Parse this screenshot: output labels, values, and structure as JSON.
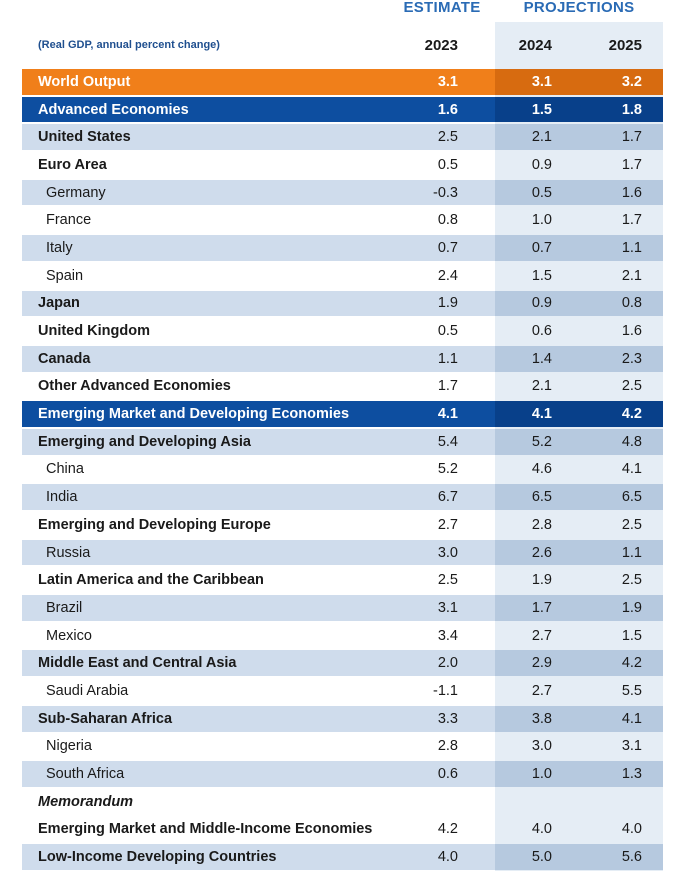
{
  "header": {
    "estimate_label": "ESTIMATE",
    "projections_label": "PROJECTIONS",
    "subtitle": "(Real GDP, annual percent change)",
    "years": [
      "2023",
      "2024",
      "2025"
    ]
  },
  "colors": {
    "orange": "#f07f1a",
    "dark_blue": "#0d4ea0",
    "light_blue_row": "#cfdcec",
    "projection_band": "#e5edf5",
    "header_blue": "#2a6bb5"
  },
  "chart_data": {
    "type": "table",
    "columns": [
      "2023",
      "2024",
      "2025"
    ],
    "rows": [
      {
        "label": "World Output",
        "style": "world",
        "values": [
          "3.1",
          "3.1",
          "3.2"
        ]
      },
      {
        "label": "Advanced Economies",
        "style": "group",
        "values": [
          "1.6",
          "1.5",
          "1.8"
        ]
      },
      {
        "label": "United States",
        "style": "region",
        "values": [
          "2.5",
          "2.1",
          "1.7"
        ]
      },
      {
        "label": "Euro Area",
        "style": "region",
        "values": [
          "0.5",
          "0.9",
          "1.7"
        ]
      },
      {
        "label": "Germany",
        "style": "country",
        "values": [
          "-0.3",
          "0.5",
          "1.6"
        ]
      },
      {
        "label": "France",
        "style": "country",
        "values": [
          "0.8",
          "1.0",
          "1.7"
        ]
      },
      {
        "label": "Italy",
        "style": "country",
        "values": [
          "0.7",
          "0.7",
          "1.1"
        ]
      },
      {
        "label": "Spain",
        "style": "country",
        "values": [
          "2.4",
          "1.5",
          "2.1"
        ]
      },
      {
        "label": "Japan",
        "style": "region",
        "values": [
          "1.9",
          "0.9",
          "0.8"
        ]
      },
      {
        "label": "United Kingdom",
        "style": "region",
        "values": [
          "0.5",
          "0.6",
          "1.6"
        ]
      },
      {
        "label": "Canada",
        "style": "region",
        "values": [
          "1.1",
          "1.4",
          "2.3"
        ]
      },
      {
        "label": "Other Advanced Economies",
        "style": "region",
        "values": [
          "1.7",
          "2.1",
          "2.5"
        ]
      },
      {
        "label": "Emerging Market and Developing Economies",
        "style": "group",
        "values": [
          "4.1",
          "4.1",
          "4.2"
        ]
      },
      {
        "label": "Emerging and Developing Asia",
        "style": "region",
        "values": [
          "5.4",
          "5.2",
          "4.8"
        ]
      },
      {
        "label": "China",
        "style": "country",
        "values": [
          "5.2",
          "4.6",
          "4.1"
        ]
      },
      {
        "label": "India",
        "style": "country",
        "values": [
          "6.7",
          "6.5",
          "6.5"
        ]
      },
      {
        "label": "Emerging and Developing Europe",
        "style": "region",
        "values": [
          "2.7",
          "2.8",
          "2.5"
        ]
      },
      {
        "label": "Russia",
        "style": "country",
        "values": [
          "3.0",
          "2.6",
          "1.1"
        ]
      },
      {
        "label": "Latin America and the Caribbean",
        "style": "region",
        "values": [
          "2.5",
          "1.9",
          "2.5"
        ]
      },
      {
        "label": "Brazil",
        "style": "country",
        "values": [
          "3.1",
          "1.7",
          "1.9"
        ]
      },
      {
        "label": "Mexico",
        "style": "country",
        "values": [
          "3.4",
          "2.7",
          "1.5"
        ]
      },
      {
        "label": "Middle East and Central Asia",
        "style": "region",
        "values": [
          "2.0",
          "2.9",
          "4.2"
        ]
      },
      {
        "label": "Saudi Arabia",
        "style": "country",
        "values": [
          "-1.1",
          "2.7",
          "5.5"
        ]
      },
      {
        "label": "Sub-Saharan Africa",
        "style": "region",
        "values": [
          "3.3",
          "3.8",
          "4.1"
        ]
      },
      {
        "label": "Nigeria",
        "style": "country",
        "values": [
          "2.8",
          "3.0",
          "3.1"
        ]
      },
      {
        "label": "South Africa",
        "style": "country",
        "values": [
          "0.6",
          "1.0",
          "1.3"
        ]
      },
      {
        "label": "Memorandum",
        "style": "memo",
        "values": [
          "",
          "",
          ""
        ]
      },
      {
        "label": "Emerging Market and Middle-Income Economies",
        "style": "region",
        "values": [
          "4.2",
          "4.0",
          "4.0"
        ]
      },
      {
        "label": "Low-Income Developing Countries",
        "style": "region",
        "values": [
          "4.0",
          "5.0",
          "5.6"
        ]
      }
    ]
  }
}
